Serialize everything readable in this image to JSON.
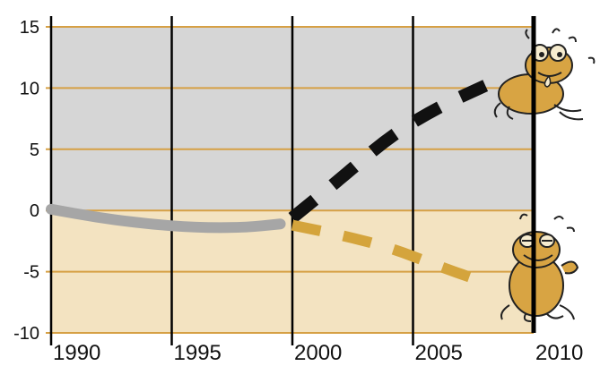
{
  "chart_data": {
    "type": "line",
    "title": "",
    "xlabel": "",
    "ylabel": "",
    "xlim": [
      1990,
      2010
    ],
    "ylim": [
      -10,
      15
    ],
    "x_ticks": [
      1990,
      1995,
      2000,
      2005,
      2010
    ],
    "x_tick_labels": [
      "1990",
      "1995",
      "2000",
      "2005",
      "2010"
    ],
    "y_ticks": [
      15,
      10,
      5,
      0,
      -5,
      -10
    ],
    "y_tick_labels": [
      "15",
      "10",
      "5",
      "0",
      "-5",
      "-10"
    ],
    "grid": true,
    "legend": "none",
    "regions": [
      {
        "from": 0,
        "to": 15,
        "color": "#d6d6d6"
      },
      {
        "from": -10,
        "to": 0,
        "color": "#f3e3c1"
      }
    ],
    "series": [
      {
        "style": "solid",
        "color": "#a6a6a6",
        "x": [
          1990,
          1992,
          1994,
          1996,
          1998,
          1999.5
        ],
        "y": [
          0.1,
          -0.6,
          -1.1,
          -1.4,
          -1.4,
          -1.1
        ]
      },
      {
        "style": "dashed",
        "color": "#111111",
        "x": [
          2000,
          2002,
          2004,
          2006,
          2008
        ],
        "y": [
          -0.6,
          2.6,
          6.0,
          8.4,
          10.2
        ]
      },
      {
        "style": "dashed",
        "color": "#d4a43c",
        "x": [
          2000,
          2002,
          2004,
          2006,
          2008
        ],
        "y": [
          -1.2,
          -2.0,
          -3.0,
          -4.5,
          -5.9
        ]
      }
    ],
    "illustrations": [
      "frog-upset-icon",
      "frog-happy-icon"
    ]
  }
}
